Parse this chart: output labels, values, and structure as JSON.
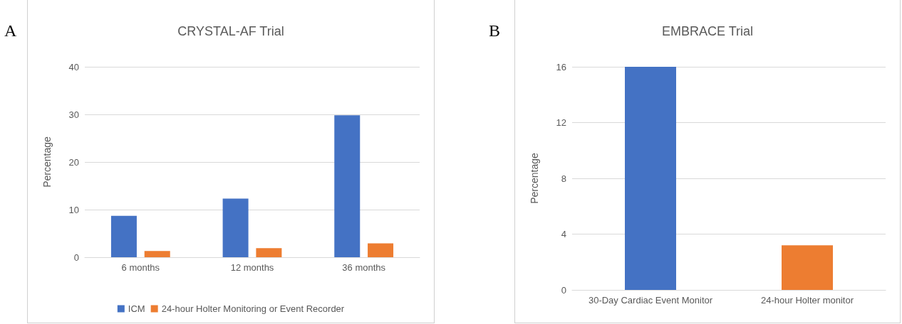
{
  "chart_data": [
    {
      "type": "bar",
      "title": "CRYSTAL-AF Trial",
      "ylabel": "Percentage",
      "annotations": [
        "A"
      ],
      "categories": [
        "6 months",
        "12 months",
        "36 months"
      ],
      "series": [
        {
          "name": "ICM",
          "color": "#4472c4",
          "values": [
            8.7,
            12.3,
            29.8
          ]
        },
        {
          "name": "24-hour Holter Monitoring or Event Recorder",
          "color": "#ed7d31",
          "values": [
            1.3,
            1.9,
            2.9
          ]
        }
      ],
      "ylim": [
        0,
        40
      ],
      "yticks": [
        0,
        10,
        20,
        30,
        40
      ],
      "grid": "y",
      "legend": "bottom"
    },
    {
      "type": "bar",
      "title": "EMBRACE Trial",
      "ylabel": "Percentage",
      "annotations": [
        "B"
      ],
      "categories": [
        "30-Day Cardiac Event Monitor",
        "24-hour Holter monitor"
      ],
      "values": [
        16,
        3.2
      ],
      "colors": [
        "#4472c4",
        "#ed7d31"
      ],
      "ylim": [
        0,
        16
      ],
      "yticks": [
        0,
        4,
        8,
        12,
        16
      ],
      "grid": "y"
    }
  ]
}
